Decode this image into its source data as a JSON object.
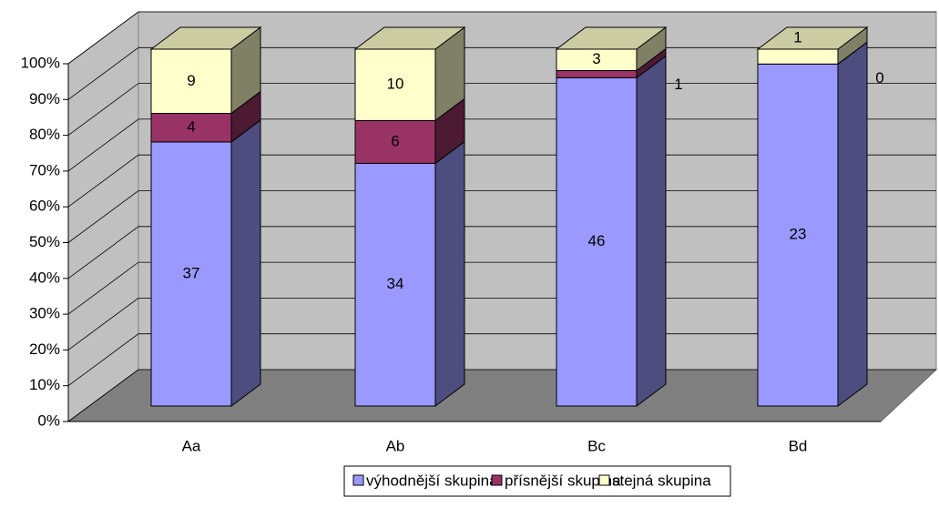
{
  "chart_data": {
    "type": "bar",
    "stacking": "percent",
    "categories": [
      "Aa",
      "Ab",
      "Bc",
      "Bd"
    ],
    "series": [
      {
        "name": "výhodnější skupina",
        "color": "#9999ff",
        "values": [
          37,
          34,
          46,
          23
        ]
      },
      {
        "name": "přísnější skupina",
        "color": "#993366",
        "values": [
          4,
          6,
          1,
          0
        ]
      },
      {
        "name": "stejná skupina",
        "color": "#ffffcc",
        "values": [
          9,
          10,
          3,
          1
        ]
      }
    ],
    "ylim": [
      0,
      100
    ],
    "yticks": [
      {
        "value": 0,
        "label": "0%"
      },
      {
        "value": 10,
        "label": "10%"
      },
      {
        "value": 20,
        "label": "20%"
      },
      {
        "value": 30,
        "label": "30%"
      },
      {
        "value": 40,
        "label": "40%"
      },
      {
        "value": 50,
        "label": "50%"
      },
      {
        "value": 60,
        "label": "60%"
      },
      {
        "value": 70,
        "label": "70%"
      },
      {
        "value": 80,
        "label": "80%"
      },
      {
        "value": 90,
        "label": "90%"
      },
      {
        "value": 100,
        "label": "100%"
      }
    ],
    "grid": true,
    "legend": "bottom"
  }
}
